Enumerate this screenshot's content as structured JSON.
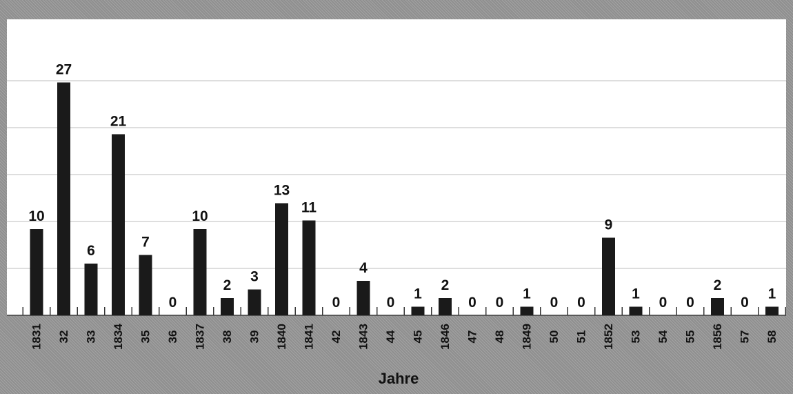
{
  "chart_data": {
    "type": "bar",
    "xlabel": "Jahre",
    "ylim": [
      0,
      30
    ],
    "grid": true,
    "categories": [
      "1831",
      "32",
      "33",
      "1834",
      "35",
      "36",
      "1837",
      "38",
      "39",
      "1840",
      "1841",
      "42",
      "1843",
      "44",
      "45",
      "1846",
      "47",
      "48",
      "1849",
      "50",
      "51",
      "1852",
      "53",
      "54",
      "55",
      "1856",
      "57",
      "58"
    ],
    "values": [
      10,
      27,
      6,
      21,
      7,
      0,
      10,
      2,
      3,
      13,
      11,
      0,
      4,
      0,
      1,
      2,
      0,
      0,
      1,
      0,
      0,
      9,
      1,
      0,
      0,
      2,
      0,
      1
    ]
  },
  "colors": {
    "bar": "#1a1a1a",
    "plot_bg": "#ffffff",
    "frame": "#9a9a9a"
  }
}
